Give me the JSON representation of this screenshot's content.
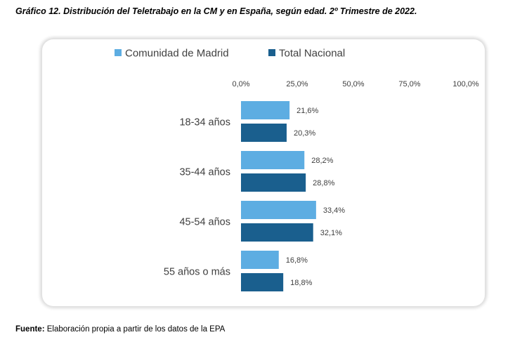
{
  "title": "Gráfico 12. Distribución del Teletrabajo en la CM y en España, según edad. 2º Trimestre de 2022.",
  "source": {
    "label": "Fuente:",
    "text": "Elaboración propia a partir de los datos de la EPA"
  },
  "colors": {
    "madrid": "#5dade2",
    "nacional": "#1a5f8e"
  },
  "chart_data": {
    "type": "bar",
    "orientation": "horizontal",
    "categories": [
      "18-34 años",
      "35-44 años",
      "45-54 años",
      "55 años o más"
    ],
    "series": [
      {
        "name": "Comunidad de Madrid",
        "values": [
          21.6,
          28.2,
          33.4,
          16.8
        ],
        "labels": [
          "21,6%",
          "28,2%",
          "33,4%",
          "16,8%"
        ]
      },
      {
        "name": "Total Nacional",
        "values": [
          20.3,
          28.8,
          32.1,
          18.8
        ],
        "labels": [
          "20,3%",
          "28,8%",
          "32,1%",
          "18,8%"
        ]
      }
    ],
    "xlim": [
      0,
      100
    ],
    "ticks": [
      0,
      25,
      50,
      75,
      100
    ],
    "tick_labels": [
      "0,0%",
      "25,0%",
      "50,0%",
      "75,0%",
      "100,0%"
    ],
    "axis_position": "top",
    "grid": false,
    "legend_position": "top"
  }
}
